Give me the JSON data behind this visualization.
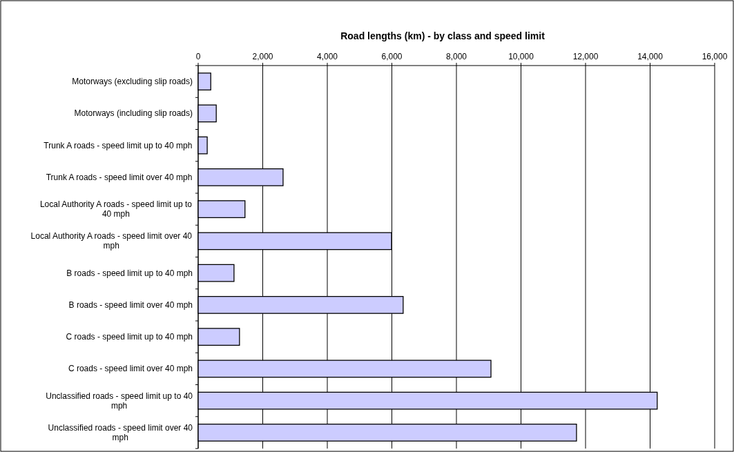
{
  "chart_data": {
    "type": "bar",
    "orientation": "horizontal",
    "title": "Road lengths (km) - by class and speed limit",
    "categories": [
      "Motorways (excluding slip roads)",
      "Motorways (including slip roads)",
      "Trunk A roads - speed limit up to 40 mph",
      "Trunk A roads - speed limit over 40 mph",
      "Local Authority A roads - speed limit up to 40 mph",
      "Local Authority A roads - speed limit over 40 mph",
      "B roads - speed limit up to 40 mph",
      "B roads - speed limit over 40 mph",
      "C roads - speed limit up to 40 mph",
      "C roads - speed limit over 40 mph",
      "Unclassified roads - speed limit up to 40 mph",
      "Unclassified roads - speed limit over 40 mph"
    ],
    "values": [
      390,
      560,
      280,
      2630,
      1450,
      5990,
      1110,
      6350,
      1280,
      9070,
      14220,
      11720
    ],
    "color": "#ccccff",
    "xlim": [
      0,
      16000
    ],
    "xticks": [
      {
        "value": 0,
        "label": "0"
      },
      {
        "value": 2000,
        "label": "2,000"
      },
      {
        "value": 4000,
        "label": "4,000"
      },
      {
        "value": 6000,
        "label": "6,000"
      },
      {
        "value": 8000,
        "label": "8,000"
      },
      {
        "value": 10000,
        "label": "10,000"
      },
      {
        "value": 12000,
        "label": "12,000"
      },
      {
        "value": 14000,
        "label": "14,000"
      },
      {
        "value": 16000,
        "label": "16,000"
      }
    ],
    "grid": "x"
  }
}
